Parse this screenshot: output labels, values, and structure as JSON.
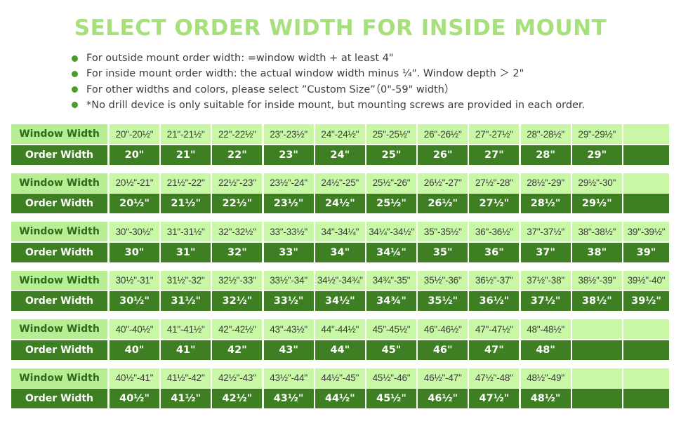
{
  "title": "SELECT ORDER WIDTH FOR INSIDE MOUNT",
  "notes": [
    "For outside mount order width: =window width + at least 4\"",
    "For inside mount order width: the actual window width minus ¼\". Window depth ＞ 2\"",
    "For other widths and colors, please select ”Custom Size”（0\"-59\" width）",
    "*No drill device is only suitable for inside mount, but mounting screws are provided in each order."
  ],
  "row_labels": {
    "window": "Window Width",
    "order": "Order Width"
  },
  "colors": {
    "title": "#a6e07a",
    "light_cell": "#c8f7a6",
    "header_light": "#b7ee93",
    "dark_cell": "#3e7f23",
    "bullet": "#4b9a2a"
  },
  "groups": [
    {
      "window": [
        "20\"-20½\"",
        "21\"-21½\"",
        "22\"-22½\"",
        "23\"-23½\"",
        "24\"-24½\"",
        "25\"-25½\"",
        "26\"-26½\"",
        "27\"-27½\"",
        "28\"-28½\"",
        "29\"-29½\"",
        ""
      ],
      "order": [
        "20\"",
        "21\"",
        "22\"",
        "23\"",
        "24\"",
        "25\"",
        "26\"",
        "27\"",
        "28\"",
        "29\"",
        ""
      ]
    },
    {
      "window": [
        "20½\"-21\"",
        "21½\"-22\"",
        "22½\"-23\"",
        "23½\"-24\"",
        "24½\"-25\"",
        "25½\"-26\"",
        "26½\"-27\"",
        "27½\"-28\"",
        "28½\"-29\"",
        "29½\"-30\"",
        ""
      ],
      "order": [
        "20½\"",
        "21½\"",
        "22½\"",
        "23½\"",
        "24½\"",
        "25½\"",
        "26½\"",
        "27½\"",
        "28½\"",
        "29½\"",
        ""
      ]
    },
    {
      "window": [
        "30\"-30½\"",
        "31\"-31½\"",
        "32\"-32½\"",
        "33\"-33½\"",
        "34\"-34¼\"",
        "34¼\"-34½\"",
        "35\"-35½\"",
        "36\"-36½\"",
        "37\"-37½\"",
        "38\"-38½\"",
        "39\"-39½\""
      ],
      "order": [
        "30\"",
        "31\"",
        "32\"",
        "33\"",
        "34\"",
        "34¼\"",
        "35\"",
        "36\"",
        "37\"",
        "38\"",
        "39\""
      ]
    },
    {
      "window": [
        "30½\"-31\"",
        "31½\"-32\"",
        "32½\"-33\"",
        "33½\"-34\"",
        "34½\"-34¾\"",
        "34¾\"-35\"",
        "35½\"-36\"",
        "36½\"-37\"",
        "37½\"-38\"",
        "38½\"-39\"",
        "39½\"-40\""
      ],
      "order": [
        "30½\"",
        "31½\"",
        "32½\"",
        "33½\"",
        "34½\"",
        "34¾\"",
        "35½\"",
        "36½\"",
        "37½\"",
        "38½\"",
        "39½\""
      ]
    },
    {
      "window": [
        "40\"-40½\"",
        "41\"-41½\"",
        "42\"-42½\"",
        "43\"-43½\"",
        "44\"-44½\"",
        "45\"-45½\"",
        "46\"-46½\"",
        "47\"-47½\"",
        "48\"-48½\"",
        "",
        ""
      ],
      "order": [
        "40\"",
        "41\"",
        "42\"",
        "43\"",
        "44\"",
        "45\"",
        "46\"",
        "47\"",
        "48\"",
        "",
        ""
      ]
    },
    {
      "window": [
        "40½\"-41\"",
        "41½\"-42\"",
        "42½\"-43\"",
        "43½\"-44\"",
        "44½\"-45\"",
        "45½\"-46\"",
        "46½\"-47\"",
        "47½\"-48\"",
        "48½\"-49\"",
        "",
        ""
      ],
      "order": [
        "40½\"",
        "41½\"",
        "42½\"",
        "43½\"",
        "44½\"",
        "45½\"",
        "46½\"",
        "47½\"",
        "48½\"",
        "",
        ""
      ]
    }
  ]
}
